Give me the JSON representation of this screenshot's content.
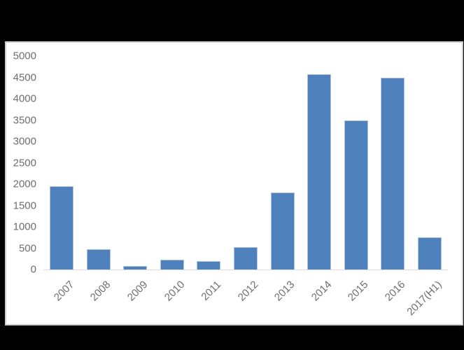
{
  "canvas": {
    "background_color": "#000000"
  },
  "panel": {
    "background_color": "#ffffff",
    "border_color": "#cdcdcd"
  },
  "chart_data": {
    "type": "bar",
    "title": "",
    "xlabel": "",
    "ylabel": "",
    "categories": [
      "2007",
      "2008",
      "2009",
      "2010",
      "2011",
      "2012",
      "2013",
      "2014",
      "2015",
      "2016",
      "2017(H1)"
    ],
    "values": [
      1950,
      480,
      90,
      230,
      190,
      530,
      1800,
      4580,
      3500,
      4500,
      760
    ],
    "ylim": [
      0,
      5000
    ],
    "ytick_interval": 500,
    "ytick_labels": [
      "0",
      "500",
      "1000",
      "1500",
      "2000",
      "2500",
      "3000",
      "3500",
      "4000",
      "4500",
      "5000"
    ],
    "grid": false,
    "legend": false,
    "x_label_rotation_deg": -45,
    "bar_color": "#4f81bd",
    "bar_border_color": "#aec5e2",
    "axis_line_color": "#dcdcdc",
    "tick_label_color": "#6e6e6e"
  }
}
